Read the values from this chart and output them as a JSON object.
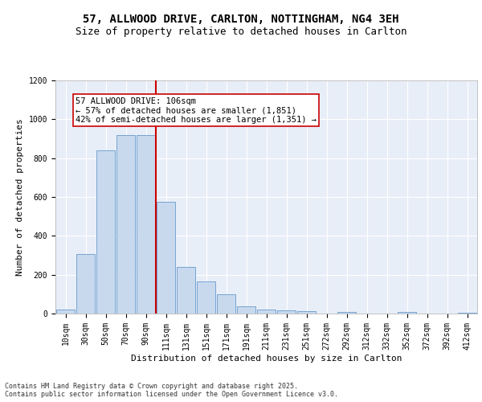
{
  "title_line1": "57, ALLWOOD DRIVE, CARLTON, NOTTINGHAM, NG4 3EH",
  "title_line2": "Size of property relative to detached houses in Carlton",
  "xlabel": "Distribution of detached houses by size in Carlton",
  "ylabel": "Number of detached properties",
  "bar_labels": [
    "10sqm",
    "30sqm",
    "50sqm",
    "70sqm",
    "90sqm",
    "111sqm",
    "131sqm",
    "151sqm",
    "171sqm",
    "191sqm",
    "211sqm",
    "231sqm",
    "251sqm",
    "272sqm",
    "292sqm",
    "312sqm",
    "332sqm",
    "352sqm",
    "372sqm",
    "392sqm",
    "412sqm"
  ],
  "bar_values": [
    20,
    305,
    840,
    920,
    920,
    575,
    240,
    165,
    100,
    38,
    20,
    18,
    12,
    0,
    10,
    0,
    0,
    8,
    0,
    0,
    5
  ],
  "bar_color": "#c8d9ee",
  "bar_edge_color": "#6699cc",
  "vline_color": "#cc0000",
  "annotation_text": "57 ALLWOOD DRIVE: 106sqm\n← 57% of detached houses are smaller (1,851)\n42% of semi-detached houses are larger (1,351) →",
  "annotation_box_color": "#ffffff",
  "annotation_box_edge": "#cc0000",
  "ylim": [
    0,
    1200
  ],
  "yticks": [
    0,
    200,
    400,
    600,
    800,
    1000,
    1200
  ],
  "background_color": "#e8eef8",
  "grid_color": "#ffffff",
  "footer_text": "Contains HM Land Registry data © Crown copyright and database right 2025.\nContains public sector information licensed under the Open Government Licence v3.0.",
  "title_fontsize": 10,
  "subtitle_fontsize": 9,
  "axis_label_fontsize": 8,
  "tick_fontsize": 7,
  "annotation_fontsize": 7.5,
  "footer_fontsize": 6
}
